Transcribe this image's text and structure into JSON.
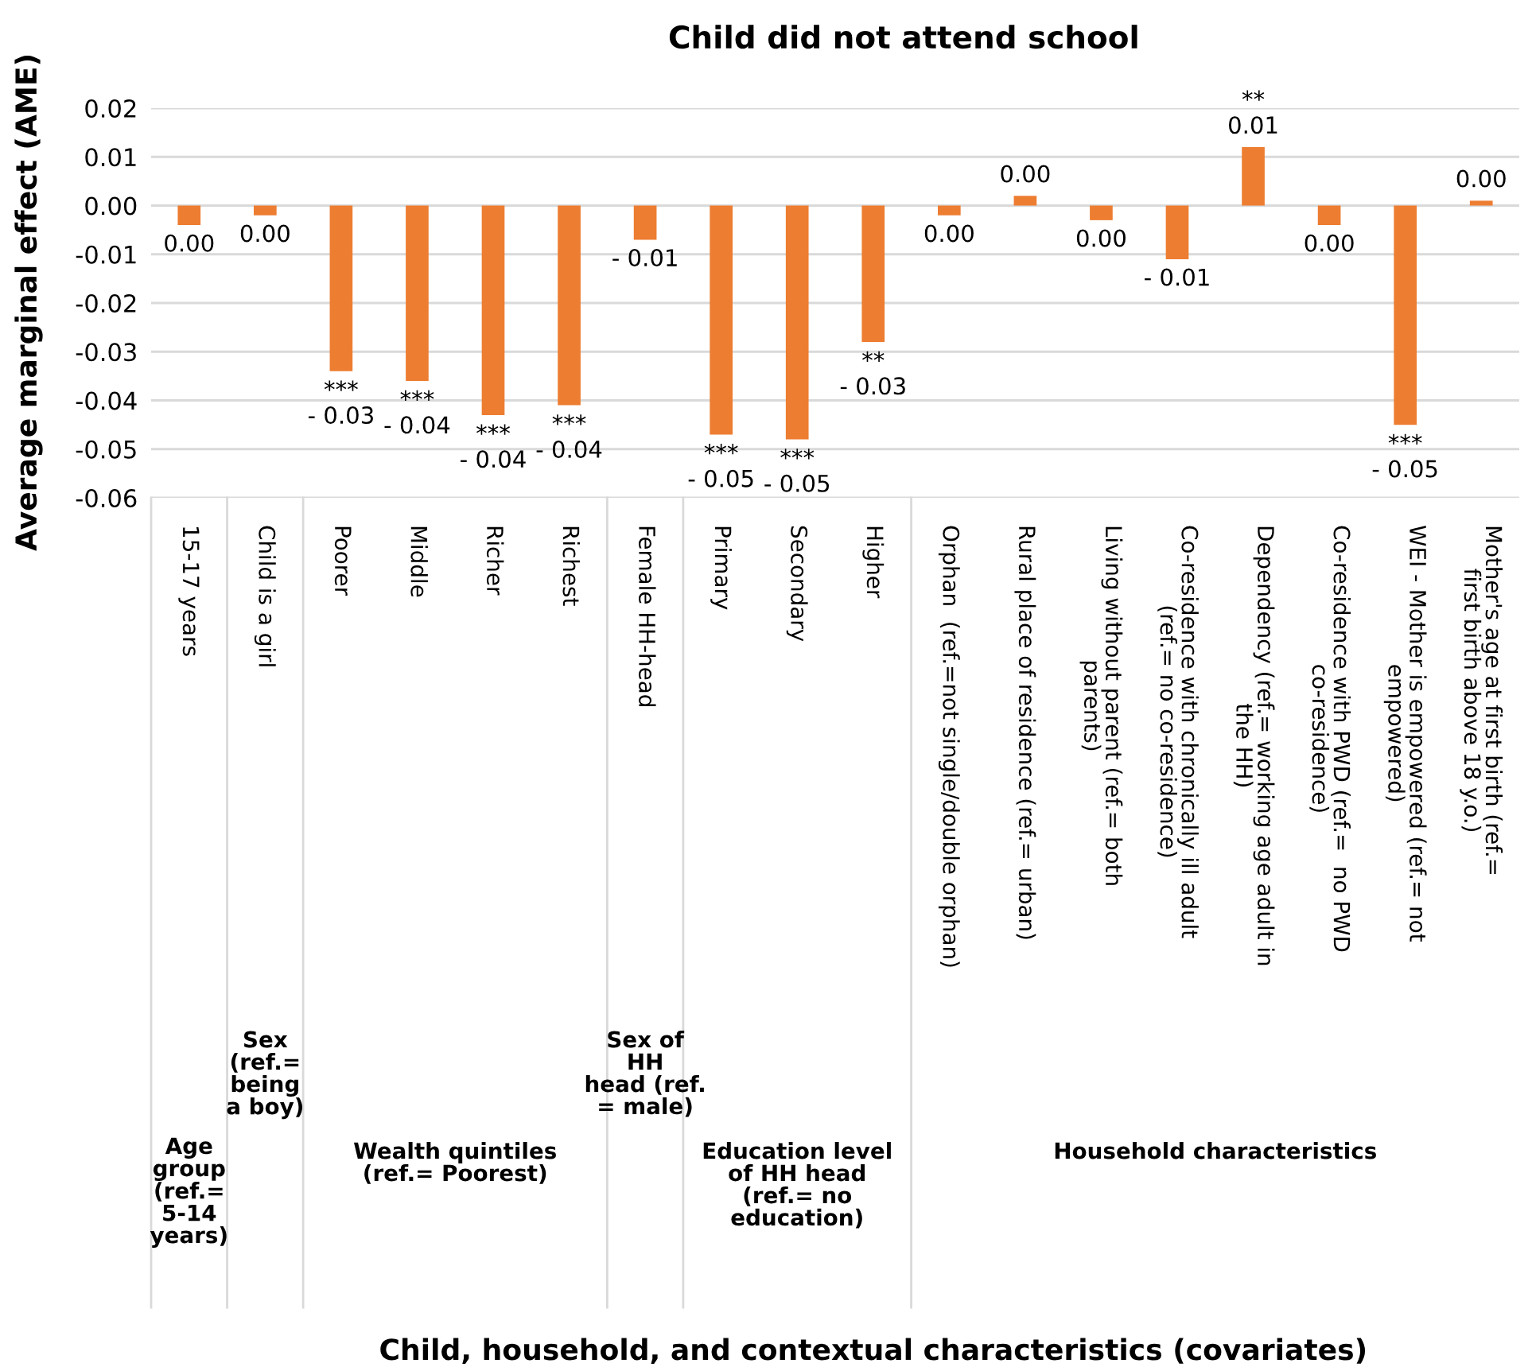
{
  "chart_data": {
    "type": "bar",
    "title": "Child did not attend school",
    "ylabel": "Average marginal effect (AME)",
    "categories": [
      "15-17 years",
      "Child is a girl",
      "Poorer",
      "Middle",
      "Richer",
      "Richest",
      "Female HH-head",
      "Primary",
      "Secondary",
      "Higher",
      "Orphan  (ref.=not single/double orphan)",
      "Rural place of residence (ref.= urban)",
      "Living without parent (ref.= both\nparents)",
      "Co-residence with chronically ill adult\n(ref.= no co-residence)",
      "Dependency (ref.= working age adult in\nthe HH)",
      "Co-residence with PWD (ref.=  no PWD\nco-residence)",
      "WEI - Mother is empowered (ref.= not\nempowered)",
      "Mother's age at first birth (ref.=\nfirst birth above 18 y.o.)"
    ],
    "values": [
      -0.004,
      -0.002,
      -0.034,
      -0.036,
      -0.043,
      -0.041,
      -0.007,
      -0.047,
      -0.048,
      -0.028,
      -0.002,
      0.002,
      -0.003,
      -0.011,
      0.012,
      -0.004,
      -0.045,
      0.001
    ],
    "value_labels": [
      "0.00",
      "0.00",
      "***\n- 0.03",
      "***\n- 0.04",
      "***\n- 0.04",
      "***\n- 0.04",
      "- 0.01",
      "***\n- 0.05",
      "***\n- 0.05",
      "**\n- 0.03",
      "0.00",
      "0.00",
      "0.00",
      "- 0.01",
      "**\n0.01",
      "0.00",
      "***\n- 0.05",
      "0.00"
    ],
    "color": "#ed7d31",
    "ylim": [
      -0.06,
      0.02
    ],
    "yticks": [
      {
        "value": -0.06,
        "label": "-0.06"
      },
      {
        "value": -0.05,
        "label": "-0.05"
      },
      {
        "value": -0.04,
        "label": "-0.04"
      },
      {
        "value": -0.03,
        "label": "-0.03"
      },
      {
        "value": -0.02,
        "label": "-0.02"
      },
      {
        "value": -0.01,
        "label": "-0.01"
      },
      {
        "value": 0.0,
        "label": "0.00"
      },
      {
        "value": 0.01,
        "label": "0.01"
      },
      {
        "value": 0.02,
        "label": "0.02"
      }
    ],
    "grid": "y",
    "annotations": [
      "Age\ngroup\n(ref.=\n5-14\nyears)",
      "Sex\n(ref.=\nbeing\na boy)",
      "Wealth quintiles\n(ref.= Poorest)",
      "Sex of\nHH\nhead (ref.\n= male)",
      "Education level\nof HH head\n(ref.= no\neducation)",
      "Household characteristics",
      "Child, household, and contextual characteristics (covariates)"
    ]
  }
}
